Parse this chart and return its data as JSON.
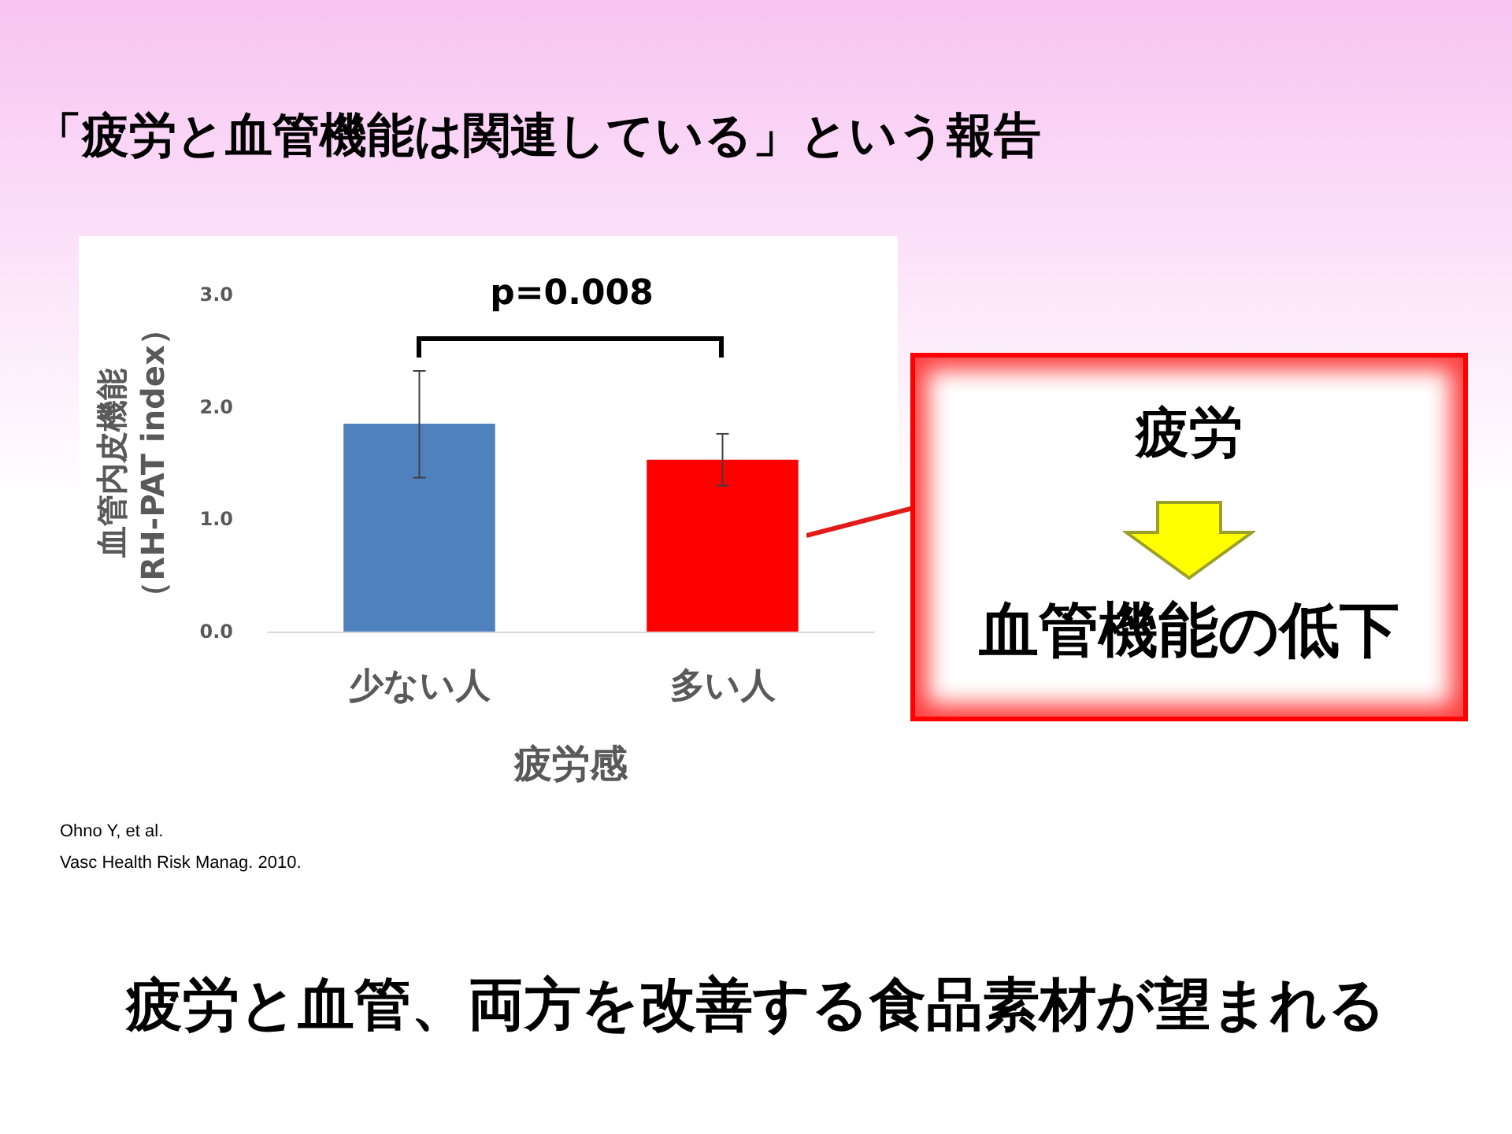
{
  "chart_data": {
    "type": "bar",
    "title": "「疲労と血管機能は関連している」という報告",
    "categories": [
      "少ない人",
      "多い人"
    ],
    "values": [
      1.85,
      1.53
    ],
    "colors": [
      "#4f81bd",
      "#ff0000"
    ],
    "errors": [
      [
        1.37,
        2.32
      ],
      [
        1.3,
        1.76
      ]
    ],
    "xlabel": "疲労感",
    "ylabel": "血管内皮機能（RH-PAT index）",
    "ylim": [
      0,
      3
    ],
    "yticks": [
      {
        "value": 0,
        "label": "0.0"
      },
      {
        "value": 1,
        "label": "1.0"
      },
      {
        "value": 2,
        "label": "2.0"
      },
      {
        "value": 3,
        "label": "3.0"
      }
    ],
    "grid": false,
    "annotations": [
      "p=0.008",
      "疲労",
      "血管機能の低下",
      "Ohno Y, et al.\nVasc Health Risk Manag. 2010.",
      "疲労と血管、両方を改善する食品素材が望まれる"
    ]
  }
}
